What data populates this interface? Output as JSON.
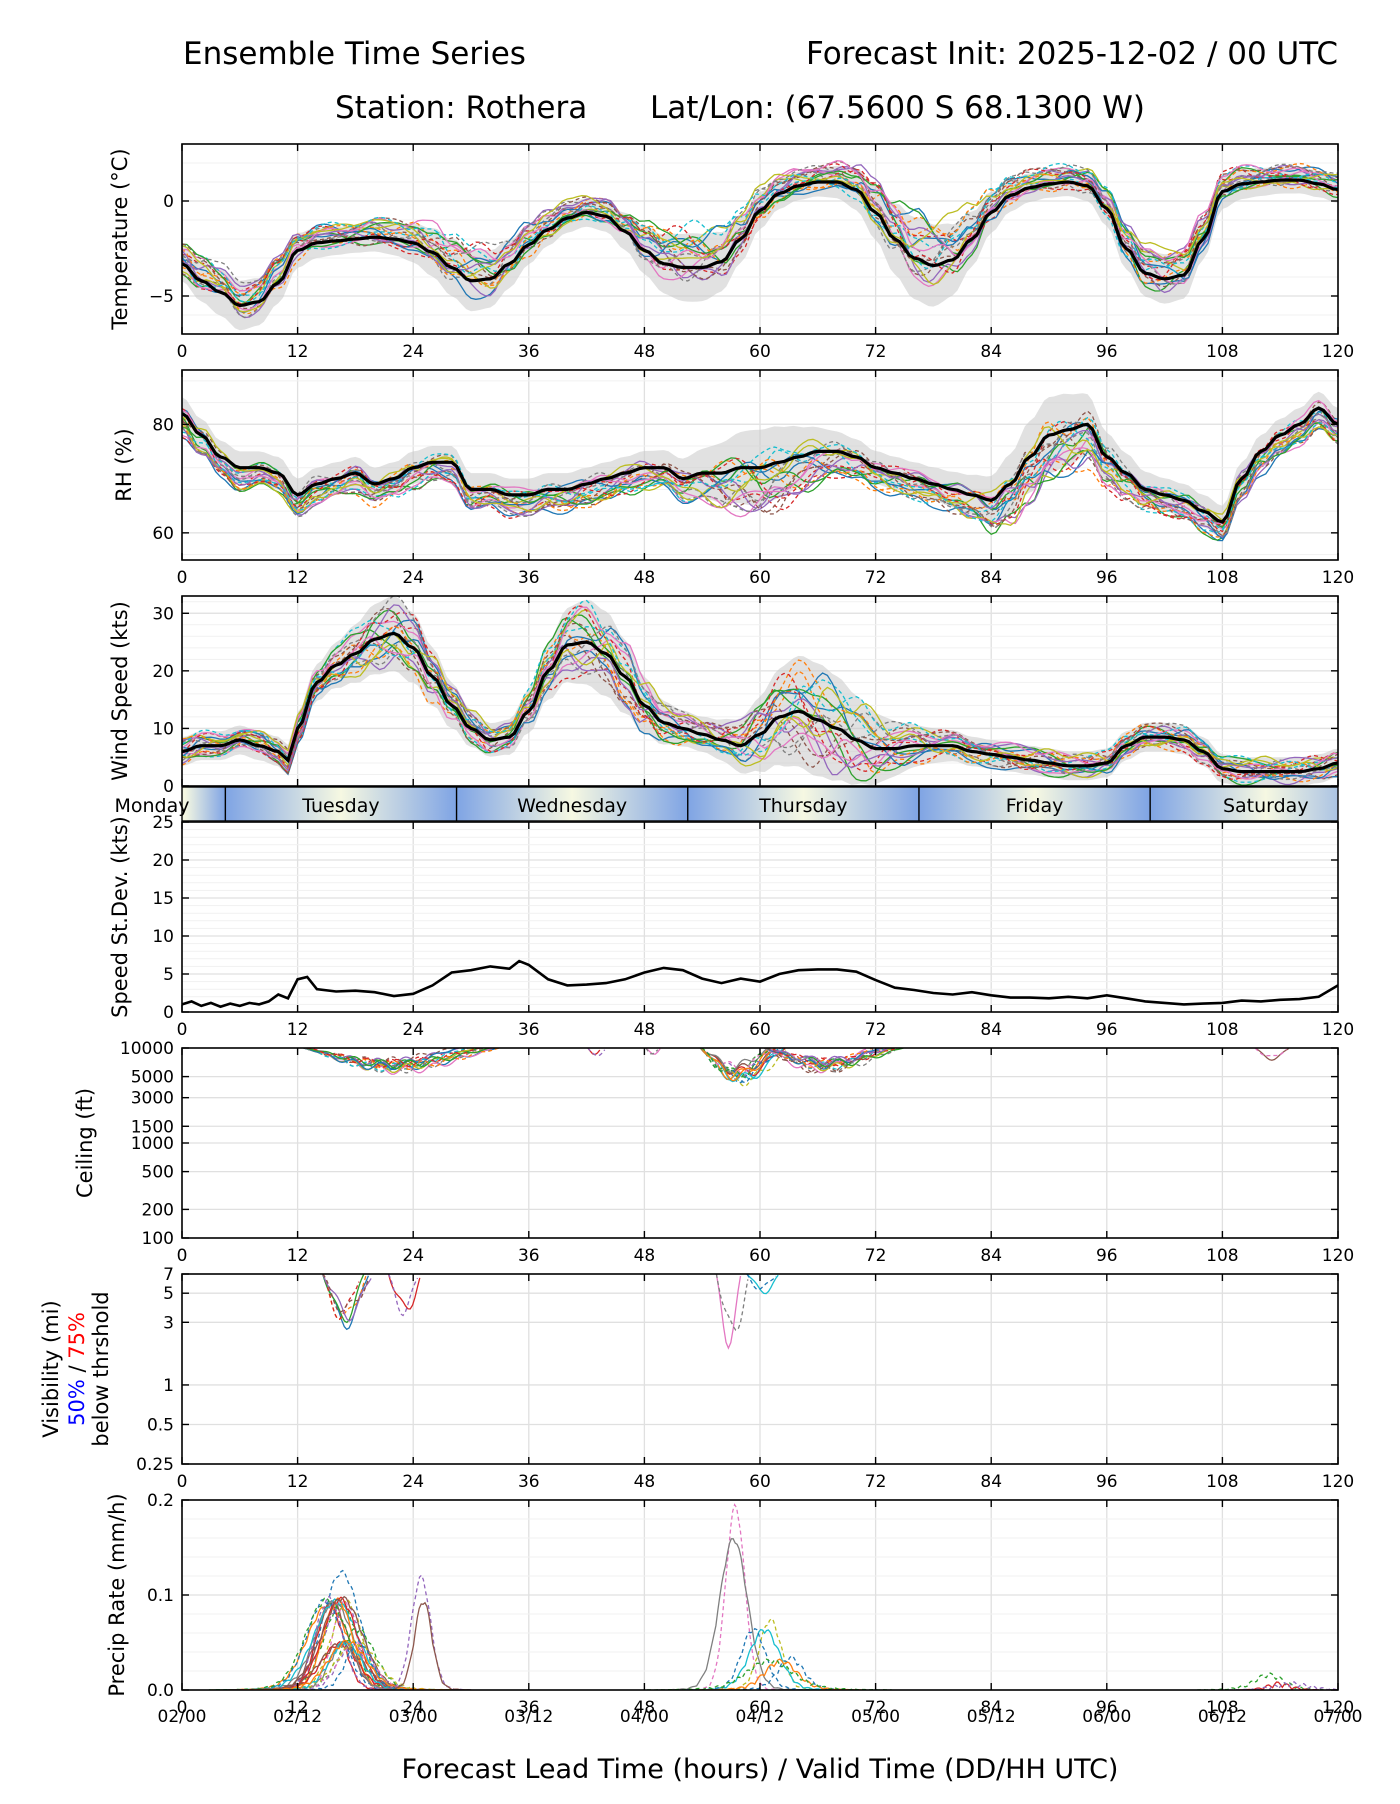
{
  "header": {
    "title": "Ensemble Time Series",
    "init": "Forecast Init: 2025-12-02 / 00 UTC",
    "station": "Station: Rothera",
    "latlon": "Lat/Lon: (67.5600 S 68.1300 W)"
  },
  "xaxis": {
    "range": [
      0,
      120
    ],
    "ticks": [
      0,
      12,
      24,
      36,
      48,
      60,
      72,
      84,
      96,
      108,
      120
    ],
    "tick_labels": [
      "0",
      "12",
      "24",
      "36",
      "48",
      "60",
      "72",
      "84",
      "96",
      "108",
      "120"
    ],
    "valid_labels": [
      "02/00",
      "02/12",
      "03/00",
      "03/12",
      "04/00",
      "04/12",
      "05/00",
      "05/12",
      "06/00",
      "06/12",
      "07/00"
    ],
    "label": "Forecast Lead Time (hours) / Valid Time (DD/HH UTC)"
  },
  "day_band": {
    "days": [
      {
        "name": "Monday",
        "start": -4,
        "end": 4.5
      },
      {
        "name": "Tuesday",
        "start": 4.5,
        "end": 28.5
      },
      {
        "name": "Wednesday",
        "start": 28.5,
        "end": 52.5
      },
      {
        "name": "Thursday",
        "start": 52.5,
        "end": 76.5
      },
      {
        "name": "Friday",
        "start": 76.5,
        "end": 100.5
      },
      {
        "name": "Saturday",
        "start": 100.5,
        "end": 124.5
      }
    ],
    "colors": {
      "edge": "#7fa4e4",
      "center": "#f6f8e2"
    }
  },
  "colors": {
    "mean": "#000000",
    "grid": "#e2e2e2",
    "band_fill": "#c9c9c9",
    "vis_50": "#0000ff",
    "vis_75": "#ff0000",
    "members": [
      "#1f77b4",
      "#ff7f0e",
      "#2ca02c",
      "#d62728",
      "#9467bd",
      "#8c564b",
      "#e377c2",
      "#7f7f7f",
      "#bcbd22",
      "#17becf"
    ]
  },
  "panels": {
    "temperature": {
      "ylabel": "Temperature (°C)",
      "ylim": [
        -7,
        3
      ],
      "ticks": [
        -5,
        0
      ],
      "tick_labels": [
        "−5",
        "0"
      ]
    },
    "rh": {
      "ylabel": "RH (%)",
      "ylim": [
        55,
        90
      ],
      "ticks": [
        60,
        80
      ],
      "tick_labels": [
        "60",
        "80"
      ]
    },
    "wind": {
      "ylabel": "Wind Speed (kts)",
      "ylim": [
        0,
        33
      ],
      "ticks": [
        0,
        10,
        20,
        30
      ],
      "tick_labels": [
        "0",
        "10",
        "20",
        "30"
      ]
    },
    "wind_sd": {
      "ylabel": "Speed St.Dev. (kts)",
      "ylim": [
        0,
        25
      ],
      "ticks": [
        0,
        5,
        10,
        15,
        20,
        25
      ],
      "tick_labels": [
        "0",
        "5",
        "10",
        "15",
        "20",
        "25"
      ]
    },
    "ceiling": {
      "ylabel": "Ceiling (ft)",
      "ylim": [
        100,
        10000
      ],
      "ticks": [
        100,
        200,
        500,
        1000,
        1500,
        3000,
        5000,
        10000
      ],
      "tick_labels": [
        "100",
        "200",
        "500",
        "1000",
        "1500",
        "3000",
        "5000",
        "10000"
      ]
    },
    "visibility": {
      "ylabel": "Visibility (mi)",
      "sublabel_50": "50%",
      "sublabel_sep": " / ",
      "sublabel_75": "75%",
      "sublabel_2": "below thrshold",
      "ylim": [
        0.25,
        7
      ],
      "ticks": [
        0.25,
        0.5,
        1,
        3,
        5,
        7
      ],
      "tick_labels": [
        "0.25",
        "0.5",
        "1",
        "3",
        "5",
        "7"
      ]
    },
    "precip": {
      "ylabel": "Precip Rate (mm/h)",
      "ylim": [
        0,
        0.2
      ],
      "ticks": [
        0,
        0.1,
        0.2
      ],
      "tick_labels": [
        "0.0",
        "0.1",
        "0.2"
      ]
    }
  },
  "chart_data": [
    {
      "type": "line",
      "title": "Temperature",
      "ylabel": "Temperature (°C)",
      "xlim": [
        0,
        120
      ],
      "ylim": [
        -7,
        3
      ],
      "mean": {
        "x": [
          0,
          2,
          4,
          6,
          8,
          10,
          12,
          14,
          16,
          18,
          20,
          22,
          24,
          26,
          28,
          30,
          32,
          34,
          36,
          38,
          40,
          42,
          44,
          46,
          48,
          50,
          52,
          54,
          56,
          58,
          60,
          62,
          64,
          66,
          68,
          70,
          72,
          74,
          76,
          78,
          80,
          82,
          84,
          86,
          88,
          90,
          92,
          94,
          96,
          98,
          100,
          102,
          104,
          106,
          108,
          110,
          112,
          114,
          116,
          118,
          120
        ],
        "y": [
          -3.3,
          -4.2,
          -4.8,
          -5.5,
          -5.3,
          -4.3,
          -2.6,
          -2.2,
          -2.1,
          -2.0,
          -1.9,
          -2.0,
          -2.2,
          -2.7,
          -3.5,
          -4.2,
          -4.1,
          -3.3,
          -2.3,
          -1.5,
          -0.9,
          -0.6,
          -0.8,
          -1.6,
          -2.6,
          -3.3,
          -3.5,
          -3.5,
          -3.2,
          -2.0,
          -0.5,
          0.4,
          0.8,
          1.0,
          1.0,
          0.6,
          -0.6,
          -2.0,
          -3.0,
          -3.4,
          -3.1,
          -2.0,
          -0.6,
          0.3,
          0.7,
          0.9,
          1.0,
          0.8,
          -0.4,
          -2.5,
          -3.8,
          -4.1,
          -3.9,
          -2.0,
          0.5,
          0.9,
          1.0,
          1.1,
          1.1,
          0.9,
          0.6
        ]
      },
      "spread": 0.7,
      "spread_peaks": [
        [
          6,
          0.6
        ],
        [
          30,
          0.9
        ],
        [
          53,
          1.1
        ],
        [
          77,
          1.5
        ],
        [
          102,
          0.6
        ]
      ]
    },
    {
      "type": "line",
      "title": "RH",
      "ylabel": "RH (%)",
      "xlim": [
        0,
        120
      ],
      "ylim": [
        55,
        90
      ],
      "mean": {
        "x": [
          0,
          2,
          4,
          6,
          8,
          10,
          12,
          14,
          16,
          18,
          20,
          22,
          24,
          26,
          28,
          30,
          32,
          34,
          36,
          38,
          40,
          42,
          44,
          46,
          48,
          50,
          52,
          54,
          56,
          58,
          60,
          62,
          64,
          66,
          68,
          70,
          72,
          74,
          76,
          78,
          80,
          82,
          84,
          86,
          88,
          90,
          92,
          94,
          96,
          98,
          100,
          102,
          104,
          106,
          108,
          110,
          112,
          114,
          116,
          118,
          120
        ],
        "y": [
          82,
          78,
          74,
          72,
          72,
          71,
          67,
          69,
          70,
          71,
          69,
          70,
          72,
          73,
          73,
          68,
          68,
          67,
          67,
          68,
          68,
          69,
          70,
          71,
          72,
          72,
          70,
          71,
          71,
          72,
          72,
          73,
          74,
          75,
          75,
          74,
          72,
          71,
          70,
          69,
          68,
          67,
          66,
          69,
          74,
          78,
          79,
          80,
          74,
          71,
          68,
          67,
          66,
          64,
          62,
          70,
          75,
          78,
          80,
          83,
          80
        ]
      },
      "spread": 3,
      "spread_peaks": [
        [
          60,
          4
        ],
        [
          90,
          4
        ]
      ]
    },
    {
      "type": "line",
      "title": "Wind Speed",
      "ylabel": "Wind Speed (kts)",
      "xlim": [
        0,
        120
      ],
      "ylim": [
        0,
        33
      ],
      "mean": {
        "x": [
          0,
          2,
          4,
          6,
          8,
          10,
          11,
          12,
          14,
          16,
          18,
          20,
          22,
          24,
          26,
          28,
          30,
          32,
          34,
          36,
          38,
          40,
          42,
          44,
          46,
          48,
          50,
          52,
          54,
          56,
          58,
          60,
          62,
          64,
          66,
          68,
          70,
          72,
          74,
          76,
          78,
          80,
          82,
          84,
          86,
          88,
          90,
          92,
          94,
          96,
          98,
          100,
          102,
          104,
          106,
          108,
          110,
          112,
          114,
          116,
          118,
          120
        ],
        "y": [
          6,
          7,
          7,
          8,
          7,
          6,
          4.5,
          10,
          18,
          21,
          23,
          25.5,
          26.5,
          24,
          19,
          14,
          10,
          8,
          8.5,
          13,
          20,
          24.5,
          25,
          23,
          19,
          14,
          11,
          10,
          9,
          8,
          7,
          9,
          12,
          13,
          11.5,
          10,
          8,
          6.5,
          6.5,
          7,
          7,
          7,
          6,
          5.5,
          5,
          4.5,
          4,
          3.5,
          3.5,
          4,
          7,
          8.5,
          8.5,
          8,
          6,
          3,
          2.5,
          2.5,
          2.5,
          2.5,
          3,
          4
        ]
      },
      "spread": 2.5,
      "spread_peaks": [
        [
          22,
          4
        ],
        [
          43,
          5
        ],
        [
          64,
          6
        ],
        [
          70,
          3
        ]
      ]
    },
    {
      "type": "line",
      "title": "Speed St.Dev.",
      "ylabel": "Speed St.Dev. (kts)",
      "xlim": [
        0,
        120
      ],
      "ylim": [
        0,
        25
      ],
      "mean": {
        "x": [
          0,
          1,
          2,
          3,
          4,
          5,
          6,
          7,
          8,
          9,
          10,
          11,
          12,
          13,
          14,
          16,
          18,
          20,
          22,
          24,
          26,
          28,
          30,
          32,
          34,
          35,
          36,
          38,
          40,
          42,
          44,
          46,
          48,
          50,
          52,
          54,
          56,
          58,
          60,
          62,
          64,
          66,
          68,
          70,
          72,
          74,
          76,
          78,
          80,
          82,
          84,
          86,
          88,
          90,
          92,
          94,
          96,
          98,
          100,
          102,
          104,
          106,
          108,
          110,
          112,
          114,
          116,
          118,
          120
        ],
        "y": [
          1.0,
          1.4,
          0.8,
          1.2,
          0.7,
          1.1,
          0.8,
          1.2,
          1.0,
          1.4,
          2.3,
          1.8,
          4.3,
          4.6,
          3.0,
          2.7,
          2.8,
          2.6,
          2.1,
          2.4,
          3.5,
          5.2,
          5.5,
          6.0,
          5.7,
          6.7,
          6.2,
          4.3,
          3.5,
          3.6,
          3.8,
          4.3,
          5.2,
          5.8,
          5.5,
          4.4,
          3.8,
          4.4,
          4.0,
          5.0,
          5.5,
          5.6,
          5.6,
          5.3,
          4.2,
          3.2,
          2.9,
          2.5,
          2.3,
          2.6,
          2.2,
          1.9,
          1.9,
          1.8,
          2.0,
          1.8,
          2.2,
          1.8,
          1.4,
          1.2,
          1.0,
          1.1,
          1.2,
          1.5,
          1.4,
          1.6,
          1.7,
          2.0,
          3.5
        ]
      }
    },
    {
      "type": "line",
      "title": "Ceiling",
      "ylabel": "Ceiling (ft)",
      "xlim": [
        0,
        120
      ],
      "ylim": [
        100,
        10000
      ],
      "yscale": "log",
      "segments": [
        {
          "start": 11.5,
          "end": 33,
          "min": 5800,
          "shape": "dip"
        },
        {
          "start": 42,
          "end": 44,
          "min": 8000,
          "shape": "dip"
        },
        {
          "start": 48,
          "end": 50,
          "min": 8200,
          "shape": "dip"
        },
        {
          "start": 53,
          "end": 63,
          "min": 4500,
          "shape": "dip"
        },
        {
          "start": 59,
          "end": 75,
          "min": 5800,
          "shape": "dip"
        },
        {
          "start": 111,
          "end": 115,
          "min": 7500,
          "shape": "dip"
        }
      ]
    },
    {
      "type": "line",
      "title": "Visibility",
      "ylabel": "Visibility (mi)",
      "xlim": [
        0,
        120
      ],
      "ylim": [
        0.25,
        7
      ],
      "yscale": "log",
      "segments": [
        {
          "start": 14,
          "end": 20,
          "min": 3.0,
          "shape": "dip"
        },
        {
          "start": 21,
          "end": 25,
          "min": 2.9,
          "shape": "dip"
        },
        {
          "start": 55,
          "end": 59,
          "min": 2.1,
          "shape": "dip"
        },
        {
          "start": 58,
          "end": 63,
          "min": 4.5,
          "shape": "dip"
        }
      ]
    },
    {
      "type": "line",
      "title": "Precip Rate",
      "ylabel": "Precip Rate (mm/h)",
      "xlim": [
        0,
        120
      ],
      "ylim": [
        0,
        0.2
      ],
      "events": [
        {
          "center": 16,
          "width": 2.5,
          "peak": 0.12
        },
        {
          "center": 17.5,
          "width": 2.5,
          "peak": 0.06
        },
        {
          "center": 24,
          "width": 1.5,
          "peak": 0.115
        },
        {
          "center": 56.5,
          "width": 1.6,
          "peak": 0.19
        },
        {
          "center": 60,
          "width": 2,
          "peak": 0.07
        },
        {
          "center": 62,
          "width": 2.5,
          "peak": 0.03
        },
        {
          "center": 114,
          "width": 1.5,
          "peak": 0.012
        }
      ]
    }
  ]
}
